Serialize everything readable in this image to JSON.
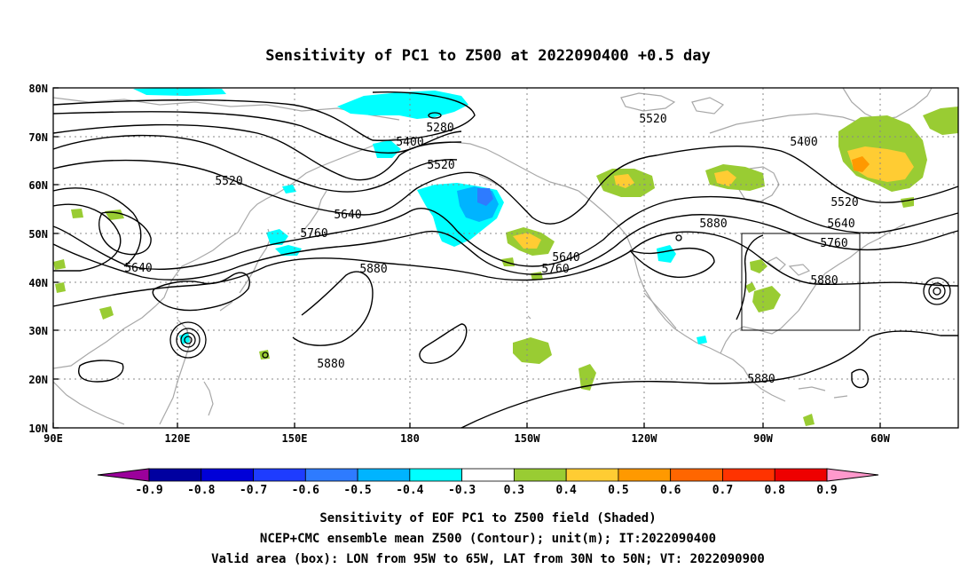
{
  "title": "Sensitivity of PC1 to Z500 at 2022090400 +0.5 day",
  "lat_labels": [
    "80N",
    "70N",
    "60N",
    "50N",
    "40N",
    "30N",
    "20N",
    "10N"
  ],
  "lon_labels": [
    "90E",
    "120E",
    "150E",
    "180",
    "150W",
    "120W",
    "90W",
    "60W"
  ],
  "contour_labels": [
    "5280",
    "5400",
    "5520",
    "5520",
    "5520",
    "5640",
    "5760",
    "5640",
    "5640",
    "5760",
    "5880",
    "5880",
    "5400",
    "5520",
    "5640",
    "5760",
    "5880",
    "5880",
    "5880"
  ],
  "colorbar": {
    "labels": [
      "-0.9",
      "-0.8",
      "-0.7",
      "-0.6",
      "-0.5",
      "-0.4",
      "-0.3",
      "0.3",
      "0.4",
      "0.5",
      "0.6",
      "0.7",
      "0.8",
      "0.9"
    ],
    "colors": [
      "#9b009b",
      "#0000a0",
      "#0000d8",
      "#1e3cff",
      "#2e7bff",
      "#00b4ff",
      "#00ffff",
      "#ffffff",
      "#99cc33",
      "#ffcc33",
      "#ff9900",
      "#ff6600",
      "#ff3300",
      "#ee0000",
      "#ff99cc"
    ]
  },
  "captions": {
    "line1": "Sensitivity of EOF PC1 to Z500 field (Shaded)",
    "line2": "NCEP+CMC ensemble mean Z500 (Contour); unit(m); IT:2022090400",
    "line3": "Valid area (box): LON from 95W to 65W, LAT from 30N to 50N; VT: 2022090900"
  }
}
